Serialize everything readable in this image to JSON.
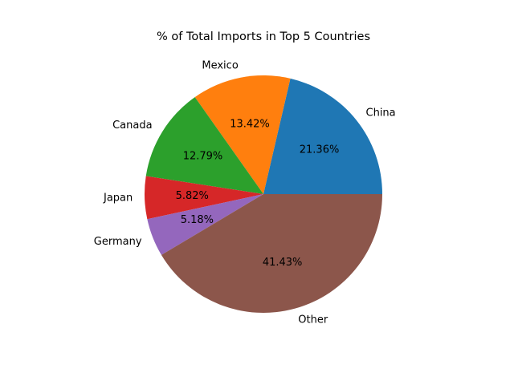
{
  "chart_data": {
    "type": "pie",
    "title": "% of Total Imports in Top 5 Countries",
    "categories": [
      "China",
      "Mexico",
      "Canada",
      "Japan",
      "Germany",
      "Other"
    ],
    "values": [
      21.36,
      13.42,
      12.79,
      5.82,
      5.18,
      41.43
    ],
    "value_labels": [
      "21.36%",
      "13.42%",
      "12.79%",
      "5.82%",
      "5.18%",
      "41.43%"
    ],
    "colors": [
      "#1f77b4",
      "#ff7f0e",
      "#2ca02c",
      "#d62728",
      "#9467bd",
      "#8c564b"
    ],
    "start_angle_deg": 0,
    "direction": "counterclockwise",
    "legend": "none"
  }
}
